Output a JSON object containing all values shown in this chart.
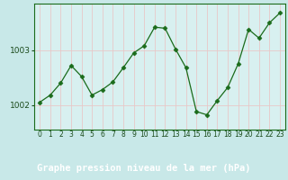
{
  "x": [
    0,
    1,
    2,
    3,
    4,
    5,
    6,
    7,
    8,
    9,
    10,
    11,
    12,
    13,
    14,
    15,
    16,
    17,
    18,
    19,
    20,
    21,
    22,
    23
  ],
  "y": [
    1002.05,
    1002.18,
    1002.4,
    1002.72,
    1002.52,
    1002.18,
    1002.28,
    1002.42,
    1002.68,
    1002.95,
    1003.08,
    1003.42,
    1003.4,
    1003.02,
    1002.68,
    1001.88,
    1001.82,
    1002.08,
    1002.32,
    1002.75,
    1003.38,
    1003.22,
    1003.5,
    1003.68
  ],
  "line_color": "#1a6b1a",
  "marker": "D",
  "marker_size": 2.5,
  "bg_color": "#c8e8e8",
  "plot_bg_color": "#d8f0f0",
  "grid_color": "#e8c8c8",
  "xlabel": "Graphe pression niveau de la mer (hPa)",
  "xlabel_fontsize": 7.5,
  "ytick_labels": [
    "1002",
    "1003"
  ],
  "ytick_values": [
    1002.0,
    1003.0
  ],
  "ylim": [
    1001.55,
    1003.85
  ],
  "xlim": [
    -0.5,
    23.5
  ],
  "xtick_fontsize": 5.5,
  "ytick_fontsize": 6.5,
  "bottom_label_bg": "#2d6b2d",
  "bottom_label_color": "#ffffff",
  "spine_color": "#1a6b1a",
  "linewidth": 0.9
}
